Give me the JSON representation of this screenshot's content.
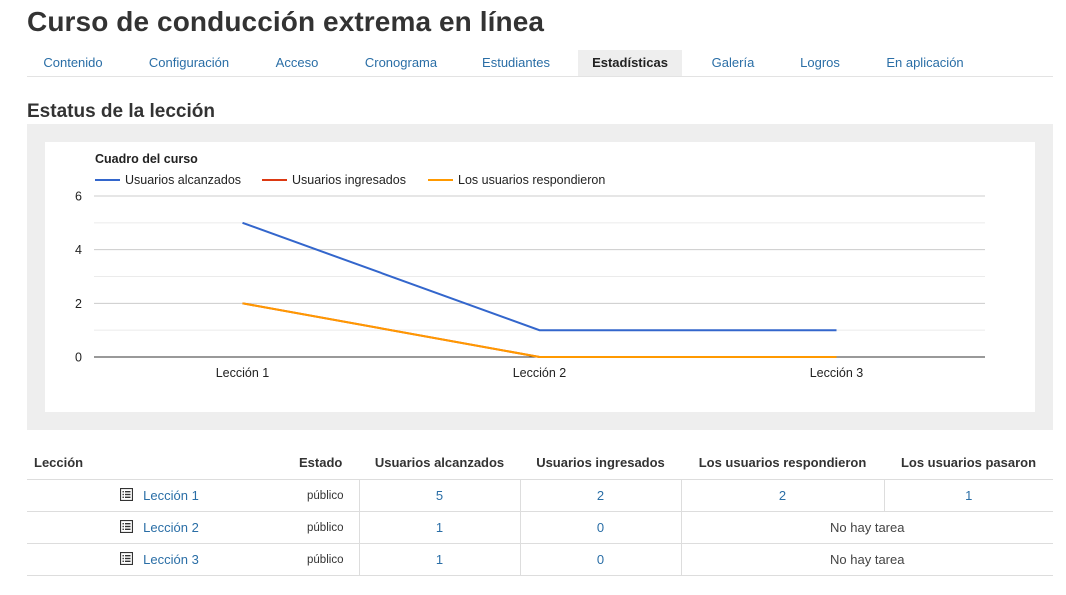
{
  "header": {
    "title": "Curso de conducción extrema en línea"
  },
  "tabs": [
    {
      "label": "Contenido"
    },
    {
      "label": "Configuración"
    },
    {
      "label": "Acceso"
    },
    {
      "label": "Cronograma"
    },
    {
      "label": "Estudiantes"
    },
    {
      "label": "Estadísticas"
    },
    {
      "label": "Galería"
    },
    {
      "label": "Logros"
    },
    {
      "label": "En aplicación"
    }
  ],
  "active_tab": "Estadísticas",
  "section_title": "Estatus de la lección",
  "chart_data": {
    "type": "line",
    "title": "Cuadro del curso",
    "categories": [
      "Lección 1",
      "Lección 2",
      "Lección 3"
    ],
    "series": [
      {
        "name": "Usuarios alcanzados",
        "values": [
          5,
          1,
          1
        ],
        "color": "#3366cc"
      },
      {
        "name": "Usuarios ingresados",
        "values": [
          2,
          0,
          0
        ],
        "color": "#dc3912"
      },
      {
        "name": "Los usuarios respondieron",
        "values": [
          2,
          0,
          0
        ],
        "color": "#ff9900"
      }
    ],
    "ylim": [
      0,
      6
    ],
    "yticks": [
      "0",
      "2",
      "4",
      "6"
    ],
    "grid": true,
    "legend": "top-left"
  },
  "table": {
    "headers": {
      "lesson": "Lección",
      "state": "Estado",
      "reached": "Usuarios alcanzados",
      "entered": "Usuarios ingresados",
      "answered": "Los usuarios respondieron",
      "passed": "Los usuarios pasaron"
    },
    "rows": [
      {
        "lesson": "Lección 1",
        "state": "público",
        "reached": "5",
        "entered": "2",
        "answered": "2",
        "passed": "1"
      },
      {
        "lesson": "Lección 2",
        "state": "público",
        "reached": "1",
        "entered": "0",
        "no_task": "No hay tarea"
      },
      {
        "lesson": "Lección 3",
        "state": "público",
        "reached": "1",
        "entered": "0",
        "no_task": "No hay tarea"
      }
    ]
  },
  "icons": {
    "lesson": "document-list-icon"
  }
}
